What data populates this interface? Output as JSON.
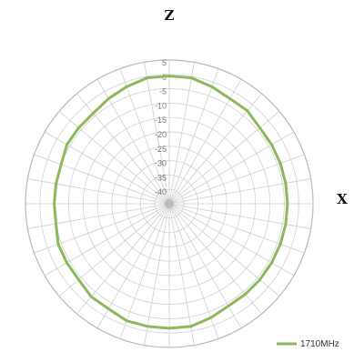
{
  "chart_data": {
    "type": "radar",
    "axis_letters": {
      "top": "Z",
      "right": "X"
    },
    "radial_ticks": [
      "5",
      "0",
      "-5",
      "-10",
      "-15",
      "-20",
      "-25",
      "-30",
      "-35",
      "-40"
    ],
    "rlim": [
      -40,
      5
    ],
    "angular_divisions": 36,
    "grid": true,
    "legend_position": "bottom-right",
    "series": [
      {
        "name": "1710MHz",
        "color": "#8db85c",
        "angles_deg": [
          0,
          10,
          20,
          30,
          40,
          50,
          60,
          70,
          80,
          90,
          100,
          110,
          120,
          130,
          140,
          150,
          160,
          170,
          180,
          190,
          200,
          210,
          220,
          230,
          240,
          250,
          260,
          270,
          280,
          290,
          300,
          310,
          320,
          330,
          340,
          350
        ],
        "values": [
          0,
          0,
          -1,
          -2,
          -2,
          -3,
          -3,
          -3,
          -3,
          -3,
          -3,
          -3,
          -3,
          -3,
          -3,
          -3,
          -2,
          -1,
          -1,
          -1,
          -1,
          -2,
          -2,
          -3,
          -3,
          -3,
          -4,
          -4,
          -4,
          -4,
          -3,
          -3,
          -3,
          -2,
          -1,
          0
        ]
      }
    ]
  }
}
